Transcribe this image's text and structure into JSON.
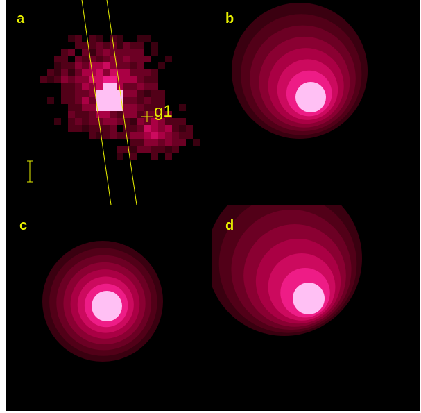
{
  "panels": [
    {
      "label": "a"
    },
    {
      "label": "b"
    },
    {
      "label": "c"
    },
    {
      "label": "d"
    }
  ],
  "annotation": "g1"
}
